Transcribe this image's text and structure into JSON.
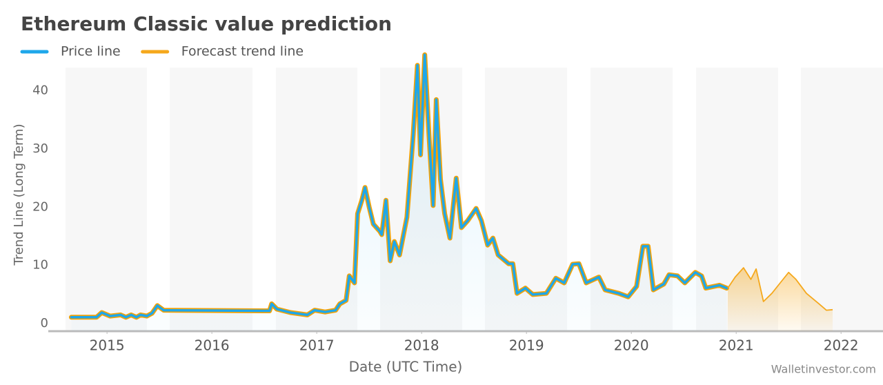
{
  "chart_data": {
    "type": "line",
    "title": "Ethereum Classic value prediction",
    "x_label": "Date (UTC Time)",
    "y_label": "Trend Line (Long Term)",
    "watermark": "Walletinvestor.com",
    "xlim": [
      2014.44,
      2022.4
    ],
    "xticks": [
      2015,
      2016,
      2017,
      2018,
      2019,
      2020,
      2021,
      2022
    ],
    "ylim": [
      -1.3,
      44
    ],
    "yticks": [
      0,
      10,
      20,
      30,
      40
    ],
    "series": [
      {
        "name": "Price line",
        "color": "#1ea7ea",
        "outline": "#f0a20a",
        "x": [
          2014.66,
          2014.9,
          2014.95,
          2015.03,
          2015.13,
          2015.18,
          2015.23,
          2015.28,
          2015.32,
          2015.38,
          2015.43,
          2015.48,
          2015.54,
          2016.55,
          2016.57,
          2016.62,
          2016.75,
          2016.91,
          2016.98,
          2017.08,
          2017.18,
          2017.22,
          2017.28,
          2017.31,
          2017.36,
          2017.39,
          2017.43,
          2017.46,
          2017.5,
          2017.54,
          2017.6,
          2017.62,
          2017.66,
          2017.7,
          2017.74,
          2017.79,
          2017.86,
          2017.92,
          2017.96,
          2017.99,
          2018.03,
          2018.07,
          2018.11,
          2018.14,
          2018.18,
          2018.22,
          2018.27,
          2018.33,
          2018.38,
          2018.44,
          2018.52,
          2018.57,
          2018.63,
          2018.68,
          2018.73,
          2018.83,
          2018.87,
          2018.91,
          2018.99,
          2019.06,
          2019.19,
          2019.28,
          2019.36,
          2019.44,
          2019.5,
          2019.57,
          2019.69,
          2019.75,
          2019.88,
          2019.97,
          2020.05,
          2020.11,
          2020.16,
          2020.21,
          2020.31,
          2020.36,
          2020.44,
          2020.51,
          2020.61,
          2020.67,
          2020.71,
          2020.84,
          2020.91
        ],
        "values": [
          1.1,
          1.1,
          1.9,
          1.3,
          1.5,
          1.1,
          1.5,
          1.1,
          1.5,
          1.3,
          1.8,
          3.1,
          2.3,
          2.2,
          3.4,
          2.5,
          1.9,
          1.5,
          2.3,
          2.0,
          2.3,
          3.4,
          4.0,
          8.2,
          7.0,
          18.9,
          21.2,
          23.4,
          20.0,
          17.1,
          15.9,
          15.3,
          21.2,
          10.8,
          14.1,
          11.8,
          18.3,
          32.5,
          44.4,
          29.0,
          46.2,
          32.5,
          20.3,
          38.5,
          24.8,
          18.9,
          14.7,
          25.0,
          16.5,
          17.7,
          19.8,
          17.7,
          13.5,
          14.7,
          11.8,
          10.3,
          10.3,
          5.2,
          6.1,
          5.0,
          5.2,
          7.8,
          7.0,
          10.2,
          10.3,
          7.0,
          8.0,
          5.8,
          5.2,
          4.6,
          6.4,
          13.3,
          13.3,
          5.8,
          6.8,
          8.4,
          8.2,
          7.0,
          8.8,
          8.2,
          6.1,
          6.6,
          6.1
        ]
      },
      {
        "name": "Forecast trend line",
        "color": "#f5a81c",
        "x": [
          2020.92,
          2020.99,
          2021.07,
          2021.14,
          2021.19,
          2021.26,
          2021.34,
          2021.42,
          2021.5,
          2021.57,
          2021.67,
          2021.79,
          2021.86,
          2021.92
        ],
        "values": [
          6.1,
          8.0,
          9.6,
          7.6,
          9.4,
          3.8,
          5.2,
          7.0,
          8.8,
          7.6,
          5.2,
          3.4,
          2.3,
          2.4
        ]
      }
    ]
  }
}
